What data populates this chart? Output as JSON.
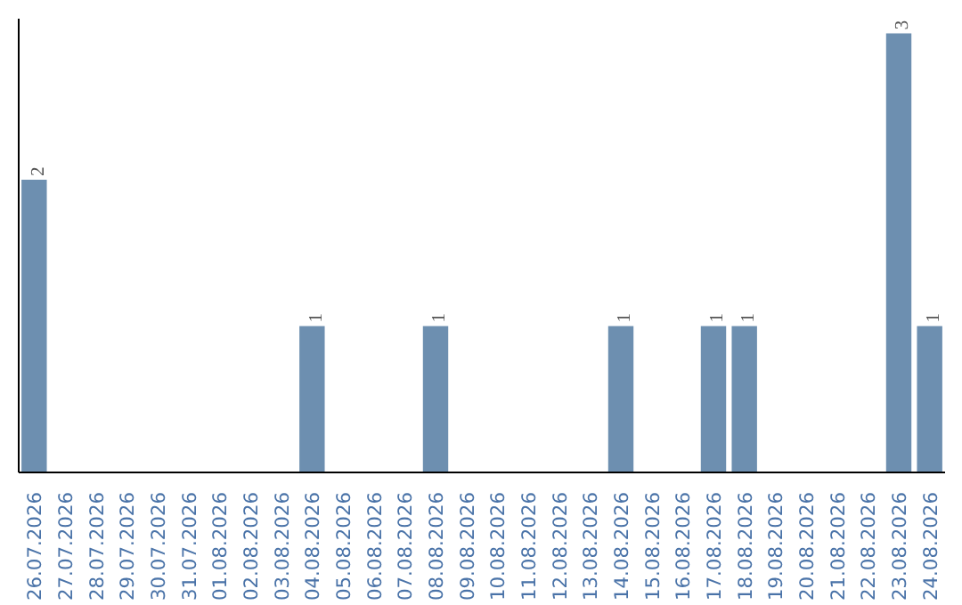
{
  "chart_data": {
    "type": "bar",
    "categories": [
      "26.07.2026",
      "27.07.2026",
      "28.07.2026",
      "29.07.2026",
      "30.07.2026",
      "31.07.2026",
      "01.08.2026",
      "02.08.2026",
      "03.08.2026",
      "04.08.2026",
      "05.08.2026",
      "06.08.2026",
      "07.08.2026",
      "08.08.2026",
      "09.08.2026",
      "10.08.2026",
      "11.08.2026",
      "12.08.2026",
      "13.08.2026",
      "14.08.2026",
      "15.08.2026",
      "16.08.2026",
      "17.08.2026",
      "18.08.2026",
      "19.08.2026",
      "20.08.2026",
      "21.08.2026",
      "22.08.2026",
      "23.08.2026",
      "24.08.2026"
    ],
    "values": [
      2,
      0,
      0,
      0,
      0,
      0,
      0,
      0,
      0,
      1,
      0,
      0,
      0,
      1,
      0,
      0,
      0,
      0,
      0,
      1,
      0,
      0,
      1,
      1,
      0,
      0,
      0,
      0,
      3,
      1
    ],
    "value_labels": [
      "2",
      null,
      null,
      null,
      null,
      null,
      null,
      null,
      null,
      "1",
      null,
      null,
      null,
      "1",
      null,
      null,
      null,
      null,
      null,
      "1",
      null,
      null,
      "1",
      "1",
      null,
      null,
      null,
      null,
      "3",
      "1"
    ],
    "color": "#6d8fb0",
    "ylim": [
      0,
      3.1
    ],
    "tick_labels": "x",
    "grid": false
  }
}
